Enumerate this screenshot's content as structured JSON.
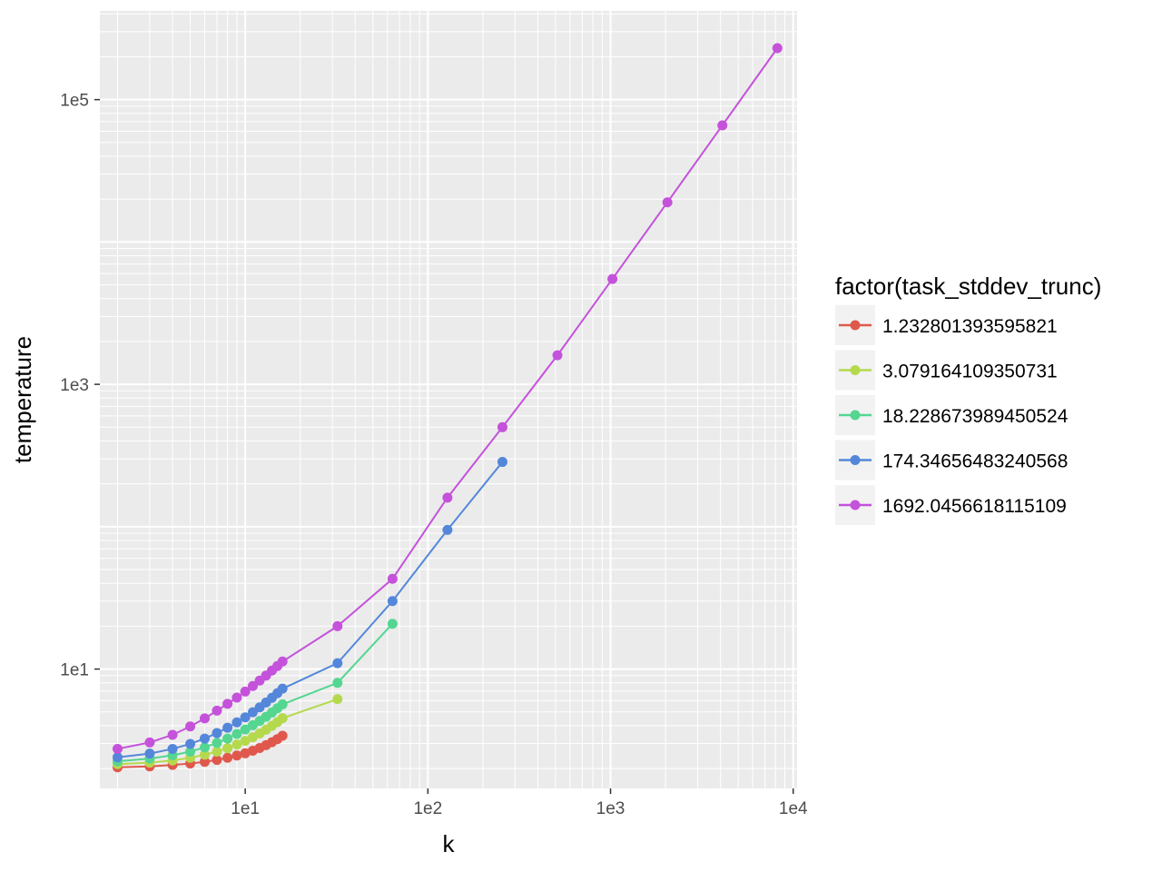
{
  "chart_data": {
    "type": "line",
    "xlabel": "k",
    "ylabel": "temperature",
    "x_scale": "log10",
    "y_scale": "log10",
    "xlim": [
      1.6,
      10500
    ],
    "ylim": [
      1.45,
      420000
    ],
    "x_ticks": [
      {
        "value": 10,
        "label": "1e1"
      },
      {
        "value": 100,
        "label": "1e2"
      },
      {
        "value": 1000,
        "label": "1e3"
      },
      {
        "value": 10000,
        "label": "1e4"
      }
    ],
    "y_ticks": [
      {
        "value": 10,
        "label": "1e1"
      },
      {
        "value": 1000,
        "label": "1e3"
      },
      {
        "value": 100000,
        "label": "1e5"
      }
    ],
    "grid": true,
    "legend": {
      "title": "factor(task_stddev_trunc)",
      "position": "right"
    },
    "series": [
      {
        "name": "1.232801393595821",
        "color": "#E0584C",
        "x": [
          2,
          3,
          4,
          5,
          6,
          7,
          8,
          9,
          10,
          11,
          12,
          13,
          14,
          15,
          16
        ],
        "y": [
          2.04,
          2.07,
          2.12,
          2.17,
          2.23,
          2.3,
          2.38,
          2.47,
          2.56,
          2.67,
          2.79,
          2.92,
          3.06,
          3.22,
          3.4
        ]
      },
      {
        "name": "3.079164109350731",
        "color": "#B5D94D",
        "x": [
          2,
          3,
          4,
          5,
          6,
          7,
          8,
          9,
          10,
          11,
          12,
          13,
          14,
          15,
          16,
          32
        ],
        "y": [
          2.15,
          2.2,
          2.28,
          2.38,
          2.5,
          2.63,
          2.78,
          2.95,
          3.13,
          3.32,
          3.53,
          3.75,
          3.99,
          4.24,
          4.52,
          6.15
        ]
      },
      {
        "name": "18.228673989450524",
        "color": "#54D691",
        "x": [
          2,
          3,
          4,
          5,
          6,
          7,
          8,
          9,
          10,
          11,
          12,
          13,
          14,
          15,
          16,
          32,
          64
        ],
        "y": [
          2.25,
          2.35,
          2.48,
          2.63,
          2.82,
          3.03,
          3.25,
          3.5,
          3.76,
          4.03,
          4.32,
          4.62,
          4.95,
          5.3,
          5.65,
          8.0,
          20.8
        ]
      },
      {
        "name": "174.34656483240568",
        "color": "#5487DA",
        "x": [
          2,
          3,
          4,
          5,
          6,
          7,
          8,
          9,
          10,
          11,
          12,
          13,
          14,
          15,
          16,
          32,
          64,
          128,
          256
        ],
        "y": [
          2.4,
          2.55,
          2.75,
          2.98,
          3.25,
          3.55,
          3.87,
          4.22,
          4.58,
          4.97,
          5.38,
          5.82,
          6.28,
          6.77,
          7.28,
          11.0,
          30.0,
          95.0,
          285
        ]
      },
      {
        "name": "1692.0456618115109",
        "color": "#C452DA",
        "x": [
          2,
          3,
          4,
          5,
          6,
          7,
          8,
          9,
          10,
          11,
          12,
          13,
          14,
          15,
          16,
          32,
          64,
          128,
          256,
          512,
          1024,
          2048,
          4096,
          8192
        ],
        "y": [
          2.75,
          3.05,
          3.45,
          3.95,
          4.5,
          5.1,
          5.7,
          6.3,
          6.95,
          7.6,
          8.3,
          9.0,
          9.75,
          10.5,
          11.3,
          20.0,
          43.0,
          160,
          500,
          1600,
          5500,
          19000,
          66000,
          230000
        ]
      }
    ]
  }
}
